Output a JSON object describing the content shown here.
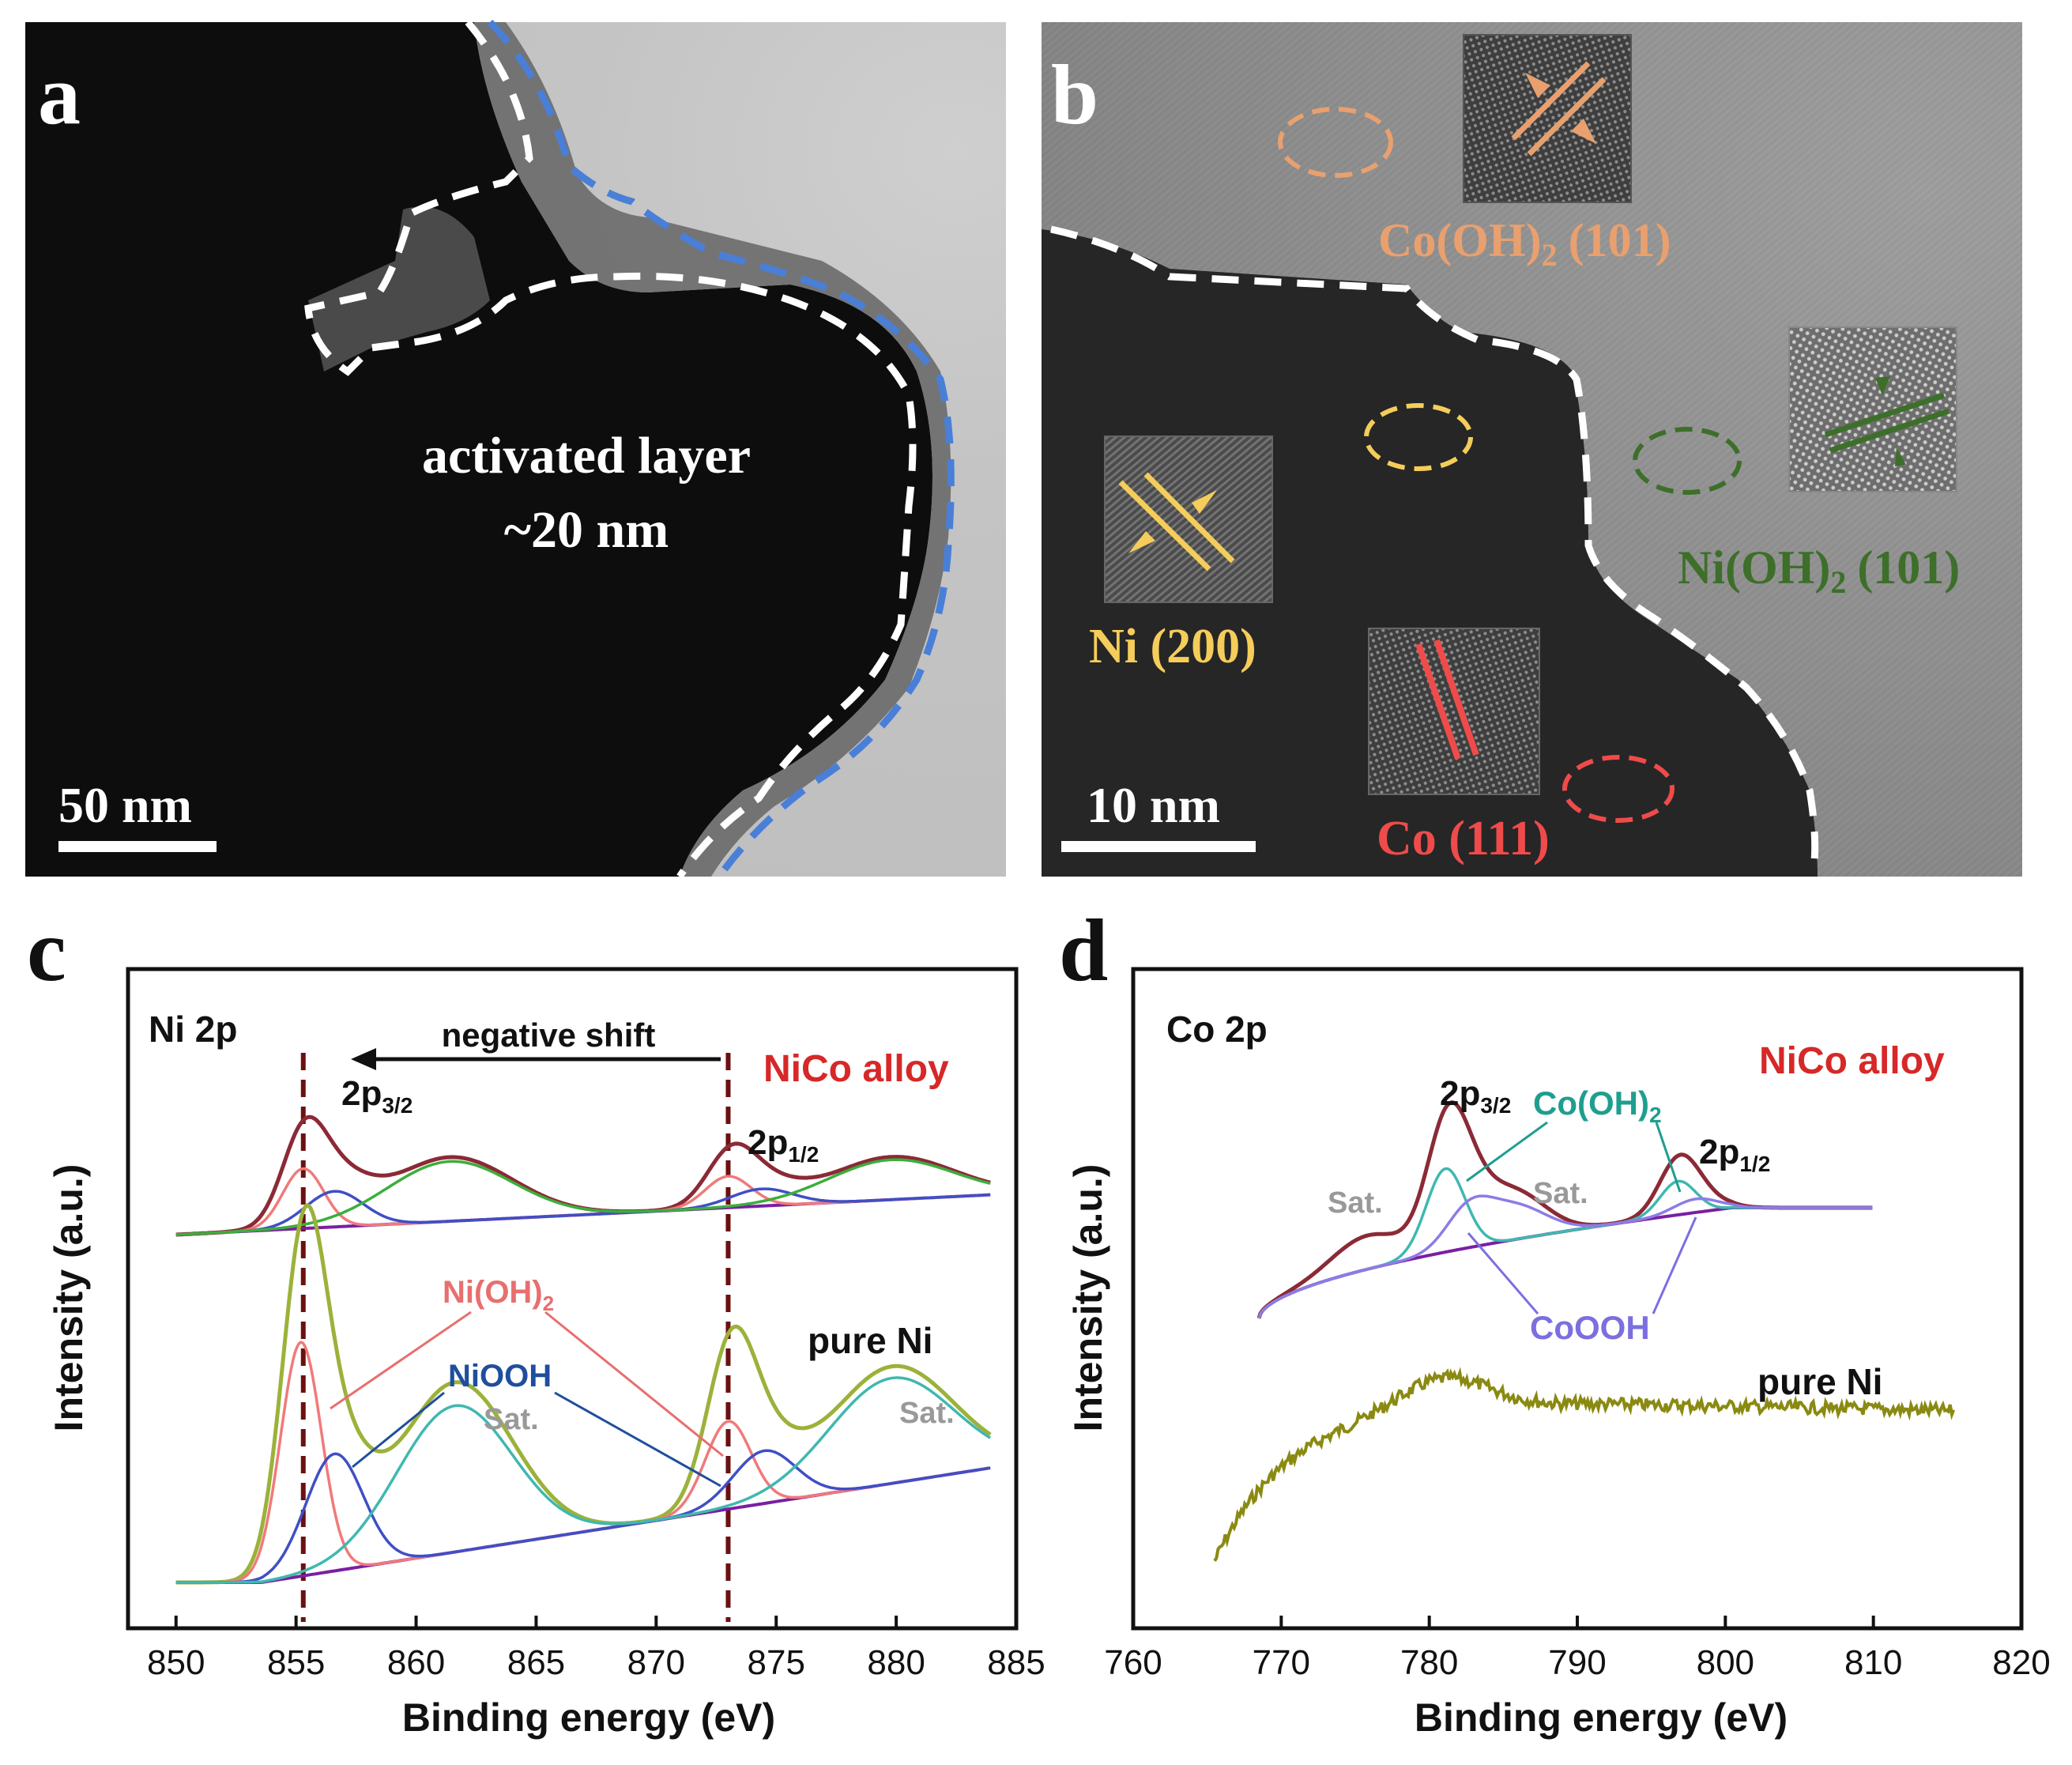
{
  "figure": {
    "panels": {
      "a": {
        "letter": "a",
        "annotation_line1": "activated layer",
        "annotation_line2": "~20 nm",
        "scale_bar": "50 nm"
      },
      "b": {
        "letter": "b",
        "scale_bar": "10 nm",
        "labels": {
          "co_oh2": "Co(OH)",
          "co_oh2_sub": "2",
          "co_oh2_plane": "(101)",
          "ni_oh2": "Ni(OH)",
          "ni_oh2_sub": "2",
          "ni_oh2_plane": "(101)",
          "ni": "Ni (200)",
          "co": "Co (111)"
        }
      },
      "c": {
        "letter": "c"
      },
      "d": {
        "letter": "d"
      }
    },
    "colors": {
      "nico_curve": "#8b2a36",
      "pure_ni_curve": "#9bb23a",
      "baseline": "#7a1fa2",
      "niooh": "#3f4fc4",
      "ni_oh2": "#f07a7a",
      "sat_green": "#3cae3c",
      "sat_brown": "#8b3a1e",
      "co_oh2_teal": "#3fb8b0",
      "cooh_purple": "#8e7be6",
      "pure_ni_co": "#8a8a12",
      "alloy_label": "#d62828",
      "co_oh2_label": "#1f9e8f",
      "niooh_label": "#1f4e9e",
      "ni_oh2_label": "#e86f6f",
      "cooh_label": "#7b6fe0",
      "b_orange": "#e9a06f",
      "b_green": "#3d6f2a",
      "b_yellow": "#f4cd5a",
      "b_red": "#ef4b4b",
      "a_blue": "#4a7fd8"
    }
  },
  "chart_data": [
    {
      "panel": "c",
      "type": "line",
      "title": "Ni 2p",
      "xlabel": "Binding energy (eV)",
      "ylabel": "Intensity (a.u.)",
      "xlim": [
        848,
        885
      ],
      "x_ticks": [
        850,
        855,
        860,
        865,
        870,
        875,
        880,
        885
      ],
      "x_tick_labels": [
        "850",
        "855",
        "860",
        "865",
        "870",
        "875",
        "880",
        "885"
      ],
      "reference_lines_eV": [
        855.3,
        873.0
      ],
      "arrow_label": "negative shift",
      "peak_labels": {
        "p32_main": "2p",
        "p32_sub": "3/2",
        "p12_main": "2p",
        "p12_sub": "1/2"
      },
      "legend": {
        "alloy": "NiCo alloy",
        "pure": "pure Ni"
      },
      "annotations": {
        "ni_oh2_main": "Ni(OH)",
        "ni_oh2_sub": "2",
        "niooh": "NiOOH",
        "sat1": "Sat.",
        "sat2": "Sat."
      },
      "series": [
        {
          "name": "NiCo alloy envelope",
          "group": "alloy",
          "color_key": "nico_curve",
          "peaks": [
            [
              855.3,
              0.55,
              0.9
            ],
            [
              856.6,
              0.3,
              1.3
            ],
            [
              861.4,
              0.45,
              2.6
            ],
            [
              873.1,
              0.33,
              1.0
            ],
            [
              874.4,
              0.15,
              1.4
            ],
            [
              879.8,
              0.3,
              2.6
            ]
          ]
        },
        {
          "name": "NiCo Ni(OH)2",
          "group": "alloy",
          "color_key": "ni_oh2",
          "peaks": [
            [
              855.3,
              0.42,
              0.85
            ],
            [
              873.0,
              0.22,
              0.95
            ]
          ]
        },
        {
          "name": "NiCo NiOOH",
          "group": "alloy",
          "color_key": "niooh",
          "peaks": [
            [
              856.6,
              0.25,
              1.2
            ],
            [
              874.4,
              0.12,
              1.3
            ]
          ]
        },
        {
          "name": "NiCo Sat.",
          "group": "alloy",
          "color_key": "sat_green",
          "peaks": [
            [
              861.4,
              0.42,
              2.6
            ],
            [
              879.8,
              0.28,
              2.6
            ]
          ]
        },
        {
          "name": "pure Ni envelope",
          "group": "pure",
          "color_key": "pure_ni_curve",
          "peaks": [
            [
              855.3,
              1.0,
              0.9
            ],
            [
              856.6,
              0.38,
              1.3
            ],
            [
              861.6,
              0.58,
              2.4
            ],
            [
              873.1,
              0.48,
              1.0
            ],
            [
              874.4,
              0.18,
              1.4
            ],
            [
              879.8,
              0.4,
              2.6
            ]
          ]
        },
        {
          "name": "pure Ni Ni(OH)2",
          "group": "pure",
          "color_key": "ni_oh2",
          "peaks": [
            [
              855.2,
              0.8,
              0.85
            ],
            [
              873.0,
              0.3,
              0.95
            ]
          ]
        },
        {
          "name": "pure Ni NiOOH",
          "group": "pure",
          "color_key": "niooh",
          "peaks": [
            [
              856.6,
              0.4,
              1.2
            ],
            [
              874.5,
              0.18,
              1.3
            ]
          ]
        },
        {
          "name": "pure Ni Sat.",
          "group": "pure",
          "color_key": "co_oh2_teal",
          "peaks": [
            [
              861.6,
              0.5,
              2.4
            ],
            [
              879.8,
              0.36,
              2.6
            ]
          ]
        }
      ]
    },
    {
      "panel": "d",
      "type": "line",
      "title": "Co 2p",
      "xlabel": "Binding energy (eV)",
      "ylabel": "Intensity (a.u.)",
      "xlim": [
        760,
        820
      ],
      "x_ticks": [
        760,
        770,
        780,
        790,
        800,
        810,
        820
      ],
      "x_tick_labels": [
        "760",
        "770",
        "780",
        "790",
        "800",
        "810",
        "820"
      ],
      "legend": {
        "alloy": "NiCo alloy",
        "pure": "pure Ni"
      },
      "peak_labels": {
        "p32_main": "2p",
        "p32_sub": "3/2",
        "p12_main": "2p",
        "p12_sub": "1/2"
      },
      "annotations": {
        "sat1": "Sat.",
        "sat2": "Sat.",
        "co_oh2_main": "Co(OH)",
        "co_oh2_sub": "2",
        "cooh": "CoOOH"
      },
      "series": [
        {
          "name": "NiCo alloy envelope",
          "group": "alloy",
          "color_key": "nico_curve",
          "xrange": [
            768.5,
            810
          ],
          "peaks": [
            [
              781.2,
              0.85,
              1.4
            ],
            [
              782.6,
              0.25,
              1.6
            ],
            [
              785.6,
              0.35,
              2.2
            ],
            [
              775.8,
              0.25,
              2.4
            ],
            [
              796.8,
              0.35,
              1.3
            ],
            [
              798.0,
              0.12,
              1.6
            ]
          ]
        },
        {
          "name": "Co(OH)2",
          "group": "alloy",
          "color_key": "co_oh2_teal",
          "xrange": [
            768.5,
            810
          ],
          "peaks": [
            [
              781.1,
              0.62,
              1.3
            ],
            [
              796.8,
              0.25,
              1.2
            ]
          ]
        },
        {
          "name": "CoOOH",
          "group": "alloy",
          "color_key": "cooh_purple",
          "xrange": [
            768.5,
            810
          ],
          "peaks": [
            [
              782.6,
              0.25,
              1.5
            ],
            [
              785.6,
              0.25,
              2.2
            ],
            [
              798.0,
              0.1,
              1.5
            ]
          ]
        },
        {
          "name": "pure Ni (Co 2p region)",
          "group": "pure",
          "color_key": "pure_ni_co",
          "xrange": [
            765.5,
            815.5
          ]
        }
      ]
    }
  ]
}
